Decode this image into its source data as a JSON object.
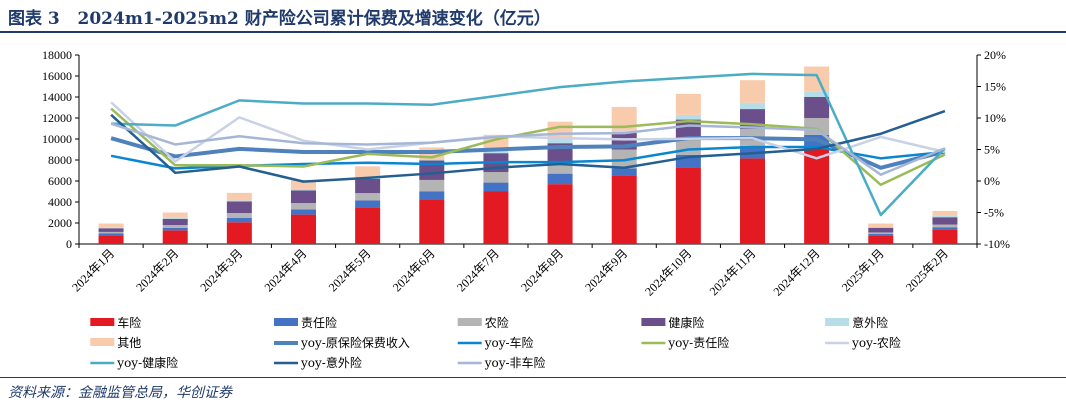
{
  "title": "图表 3   2024m1-2025m2 财产险公司累计保费及增速变化（亿元）",
  "source": "资料来源：金融监管总局，华创证券",
  "chart_data": {
    "type": "bar+line",
    "categories": [
      "2024年1月",
      "2024年2月",
      "2024年3月",
      "2024年4月",
      "2024年5月",
      "2024年6月",
      "2024年7月",
      "2024年8月",
      "2024年9月",
      "2024年10月",
      "2024年11月",
      "2024年12月",
      "2025年1月",
      "2025年2月"
    ],
    "y_left": {
      "min": 0,
      "max": 18000,
      "ticks": [
        "0",
        "2000",
        "4000",
        "6000",
        "8000",
        "10000",
        "12000",
        "14000",
        "16000",
        "18000"
      ]
    },
    "y_right": {
      "min": -10,
      "max": 20,
      "ticks": [
        "-10%",
        "-5%",
        "0%",
        "5%",
        "10%",
        "15%",
        "20%"
      ]
    },
    "legend_position": "bottom",
    "bar_series": [
      {
        "name": "车险",
        "color": "#E31A22",
        "values": [
          800,
          1300,
          2070,
          2800,
          3500,
          4250,
          5000,
          5700,
          6550,
          7300,
          8150,
          9000,
          800,
          1400
        ]
      },
      {
        "name": "责任险",
        "color": "#4472C4",
        "values": [
          200,
          250,
          430,
          500,
          650,
          750,
          850,
          1000,
          650,
          1200,
          1200,
          1400,
          150,
          200
        ]
      },
      {
        "name": "农险",
        "color": "#B4B4B4",
        "values": [
          150,
          250,
          450,
          600,
          700,
          1100,
          1000,
          1000,
          1800,
          1400,
          1600,
          1600,
          150,
          250
        ]
      },
      {
        "name": "健康险",
        "color": "#6A4F8A",
        "values": [
          350,
          600,
          1100,
          1200,
          1350,
          1850,
          1800,
          1900,
          1600,
          1950,
          1900,
          2000,
          450,
          700
        ]
      },
      {
        "name": "意外险",
        "color": "#B7DEE8",
        "values": [
          50,
          100,
          100,
          150,
          100,
          150,
          150,
          350,
          200,
          450,
          600,
          550,
          50,
          150
        ]
      },
      {
        "name": "其他",
        "color": "#F8CBAD",
        "values": [
          400,
          500,
          720,
          850,
          1100,
          1100,
          1600,
          1700,
          2250,
          2000,
          2150,
          2350,
          350,
          450
        ]
      }
    ],
    "line_series": [
      {
        "name": "yoy-原保险保费收入",
        "color": "#4F81BD",
        "width": 4,
        "values": [
          6.8,
          3.9,
          5.1,
          4.6,
          4.6,
          4.6,
          5.0,
          5.4,
          5.5,
          6.8,
          6.8,
          6.6,
          2.1,
          4.7
        ]
      },
      {
        "name": "yoy-车险",
        "color": "#0A86D0",
        "width": 2.5,
        "values": [
          4.0,
          2.0,
          2.4,
          2.7,
          2.9,
          2.7,
          3.0,
          3.0,
          3.3,
          5.0,
          5.4,
          5.4,
          3.6,
          4.6
        ]
      },
      {
        "name": "yoy-责任险",
        "color": "#9BBB59",
        "width": 2.5,
        "values": [
          11.5,
          2.5,
          2.5,
          2.3,
          4.3,
          3.75,
          6.6,
          8.6,
          8.6,
          9.5,
          9.0,
          8.3,
          -0.6,
          4.2
        ]
      },
      {
        "name": "yoy-农险",
        "color": "#C9D1E6",
        "width": 2.5,
        "values": [
          12.5,
          3.1,
          10.1,
          6.4,
          5.0,
          6.1,
          7.1,
          6.8,
          6.6,
          6.7,
          6.8,
          3.6,
          7.0,
          4.6
        ]
      },
      {
        "name": "yoy-健康险",
        "color": "#4BACC6",
        "width": 2.5,
        "values": [
          9.1,
          8.8,
          12.8,
          12.3,
          12.3,
          12.1,
          13.5,
          14.9,
          15.8,
          16.4,
          17.0,
          16.8,
          -5.4,
          5.2
        ]
      },
      {
        "name": "yoy-意外险",
        "color": "#255E91",
        "width": 2.5,
        "values": [
          10.5,
          1.3,
          2.3,
          -0.1,
          0.5,
          1.2,
          2.1,
          2.7,
          2.1,
          3.8,
          4.4,
          5.1,
          7.5,
          11.1
        ]
      },
      {
        "name": "yoy-非车险",
        "color": "#A5B6D6",
        "width": 2.5,
        "values": [
          9.1,
          5.8,
          7.1,
          6.0,
          5.8,
          6.1,
          7.0,
          7.5,
          7.6,
          8.8,
          8.5,
          8.1,
          1.0,
          5.2
        ]
      }
    ]
  }
}
